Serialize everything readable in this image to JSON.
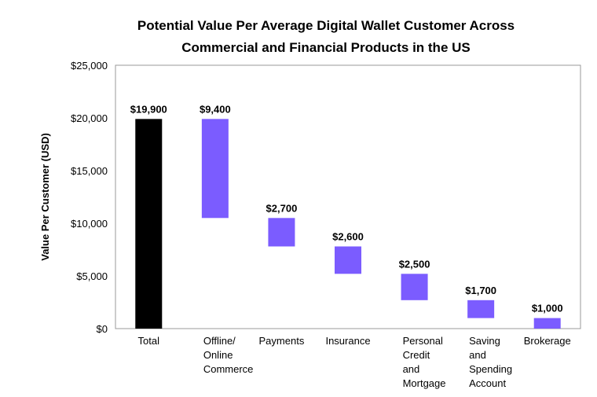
{
  "chart_data": {
    "type": "bar",
    "subtype": "waterfall",
    "title_line1": "Potential Value Per Average Digital Wallet Customer Across",
    "title_line2": "Commercial and Financial Products in the US",
    "ylabel": "Value Per Customer (USD)",
    "xlabel": "",
    "ylim": [
      0,
      25000
    ],
    "yticks": [
      "$0",
      "$5,000",
      "$10,000",
      "$15,000",
      "$20,000",
      "$25,000"
    ],
    "ytick_values": [
      0,
      5000,
      10000,
      15000,
      20000,
      25000
    ],
    "grid": false,
    "categories": [
      [
        "Total"
      ],
      [
        "Offline/",
        "Online",
        "Commerce"
      ],
      [
        "Payments"
      ],
      [
        "Insurance"
      ],
      [
        "Personal",
        "Credit",
        "and",
        "Mortgage"
      ],
      [
        "Saving",
        "and",
        "Spending",
        "Account"
      ],
      [
        "Brokerage"
      ]
    ],
    "bars": [
      {
        "kind": "total",
        "value": 19900,
        "label": "$19,900"
      },
      {
        "kind": "step",
        "value": 9400,
        "label": "$9,400"
      },
      {
        "kind": "step",
        "value": 2700,
        "label": "$2,700"
      },
      {
        "kind": "step",
        "value": 2600,
        "label": "$2,600"
      },
      {
        "kind": "step",
        "value": 2500,
        "label": "$2,500"
      },
      {
        "kind": "step",
        "value": 1700,
        "label": "$1,700"
      },
      {
        "kind": "step",
        "value": 1000,
        "label": "$1,000"
      }
    ],
    "colors": {
      "total": "#000000",
      "step": "#7b5cff"
    }
  }
}
